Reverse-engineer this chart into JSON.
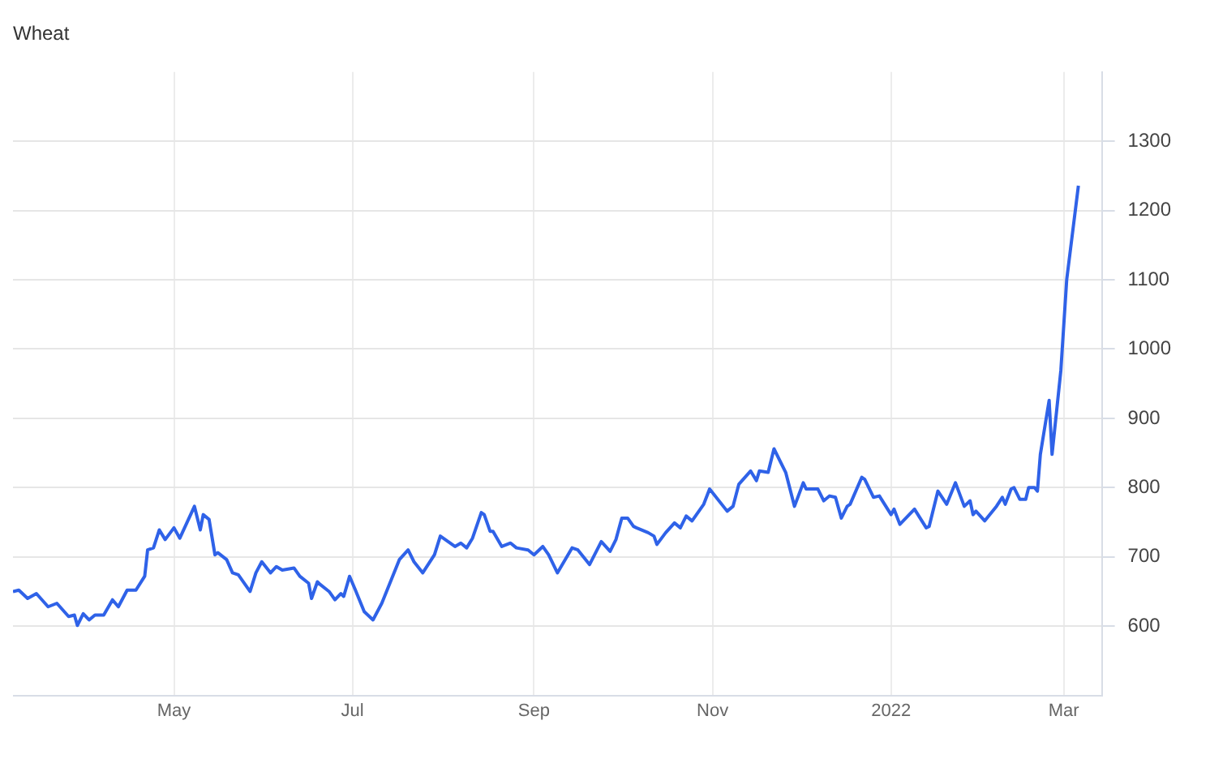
{
  "chart_data": {
    "type": "line",
    "title": "Wheat",
    "x": [
      "2021-03-07",
      "2021-03-09",
      "2021-03-12",
      "2021-03-15",
      "2021-03-19",
      "2021-03-22",
      "2021-03-26",
      "2021-03-28",
      "2021-03-29",
      "2021-03-31",
      "2021-04-02",
      "2021-04-04",
      "2021-04-07",
      "2021-04-10",
      "2021-04-12",
      "2021-04-15",
      "2021-04-18",
      "2021-04-21",
      "2021-04-22",
      "2021-04-24",
      "2021-04-26",
      "2021-04-28",
      "2021-05-01",
      "2021-05-03",
      "2021-05-08",
      "2021-05-10",
      "2021-05-11",
      "2021-05-13",
      "2021-05-15",
      "2021-05-16",
      "2021-05-19",
      "2021-05-21",
      "2021-05-23",
      "2021-05-27",
      "2021-05-29",
      "2021-05-31",
      "2021-06-03",
      "2021-06-05",
      "2021-06-07",
      "2021-06-11",
      "2021-06-13",
      "2021-06-16",
      "2021-06-17",
      "2021-06-19",
      "2021-06-20",
      "2021-06-23",
      "2021-06-25",
      "2021-06-27",
      "2021-06-28",
      "2021-06-30",
      "2021-07-02",
      "2021-07-05",
      "2021-07-08",
      "2021-07-11",
      "2021-07-17",
      "2021-07-20",
      "2021-07-22",
      "2021-07-25",
      "2021-07-29",
      "2021-07-31",
      "2021-08-05",
      "2021-08-07",
      "2021-08-09",
      "2021-08-11",
      "2021-08-14",
      "2021-08-15",
      "2021-08-17",
      "2021-08-18",
      "2021-08-21",
      "2021-08-24",
      "2021-08-26",
      "2021-08-30",
      "2021-09-01",
      "2021-09-04",
      "2021-09-06",
      "2021-09-09",
      "2021-09-14",
      "2021-09-16",
      "2021-09-20",
      "2021-09-24",
      "2021-09-27",
      "2021-09-29",
      "2021-10-01",
      "2021-10-03",
      "2021-10-05",
      "2021-10-06",
      "2021-10-10",
      "2021-10-12",
      "2021-10-13",
      "2021-10-16",
      "2021-10-19",
      "2021-10-21",
      "2021-10-23",
      "2021-10-25",
      "2021-10-29",
      "2021-10-31",
      "2021-11-06",
      "2021-11-08",
      "2021-11-10",
      "2021-11-14",
      "2021-11-16",
      "2021-11-17",
      "2021-11-20",
      "2021-11-22",
      "2021-11-26",
      "2021-11-29",
      "2021-12-02",
      "2021-12-03",
      "2021-12-07",
      "2021-12-09",
      "2021-12-11",
      "2021-12-13",
      "2021-12-15",
      "2021-12-17",
      "2021-12-18",
      "2021-12-22",
      "2021-12-23",
      "2021-12-26",
      "2021-12-28",
      "2022-01-01",
      "2022-01-02",
      "2022-01-04",
      "2022-01-09",
      "2022-01-13",
      "2022-01-14",
      "2022-01-17",
      "2022-01-20",
      "2022-01-23",
      "2022-01-26",
      "2022-01-28",
      "2022-01-29",
      "2022-01-30",
      "2022-02-02",
      "2022-02-06",
      "2022-02-08",
      "2022-02-09",
      "2022-02-11",
      "2022-02-12",
      "2022-02-14",
      "2022-02-16",
      "2022-02-17",
      "2022-02-19",
      "2022-02-20",
      "2022-02-21",
      "2022-02-24",
      "2022-02-25",
      "2022-02-28",
      "2022-03-02",
      "2022-03-06"
    ],
    "series": [
      {
        "color": "#2f62e8",
        "values": [
          650,
          652,
          640,
          647,
          628,
          633,
          614,
          616,
          601,
          618,
          609,
          616,
          616,
          638,
          628,
          652,
          652,
          672,
          710,
          713,
          739,
          725,
          742,
          727,
          773,
          739,
          761,
          754,
          703,
          706,
          696,
          677,
          674,
          650,
          677,
          693,
          677,
          686,
          681,
          684,
          672,
          662,
          640,
          664,
          660,
          650,
          638,
          647,
          643,
          672,
          652,
          621,
          609,
          633,
          696,
          710,
          693,
          677,
          703,
          730,
          715,
          720,
          713,
          727,
          764,
          761,
          737,
          737,
          715,
          720,
          713,
          710,
          703,
          715,
          703,
          677,
          713,
          710,
          689,
          722,
          708,
          725,
          756,
          756,
          744,
          742,
          735,
          730,
          718,
          735,
          749,
          742,
          759,
          752,
          776,
          798,
          766,
          773,
          805,
          824,
          810,
          824,
          822,
          856,
          822,
          773,
          807,
          798,
          798,
          781,
          788,
          786,
          756,
          773,
          776,
          815,
          812,
          786,
          788,
          761,
          769,
          747,
          769,
          742,
          744,
          795,
          776,
          807,
          773,
          781,
          761,
          766,
          752,
          773,
          786,
          776,
          798,
          800,
          783,
          783,
          800,
          800,
          795,
          848,
          926,
          848,
          969,
          1100,
          1236
        ]
      }
    ],
    "xlim": [
      "2021-03-07",
      "2022-03-14"
    ],
    "xticks": [
      {
        "value": "2021-05-01",
        "label": "May"
      },
      {
        "value": "2021-07-01",
        "label": "Jul"
      },
      {
        "value": "2021-09-01",
        "label": "Sep"
      },
      {
        "value": "2021-11-01",
        "label": "Nov"
      },
      {
        "value": "2022-01-01",
        "label": "2022"
      },
      {
        "value": "2022-03-01",
        "label": "Mar"
      }
    ],
    "ylim": [
      500,
      1400
    ],
    "yticks": [
      600,
      700,
      800,
      900,
      1000,
      1100,
      1200,
      1300
    ],
    "grid": true,
    "legend": false,
    "marker": "none",
    "line_style": "solid"
  }
}
